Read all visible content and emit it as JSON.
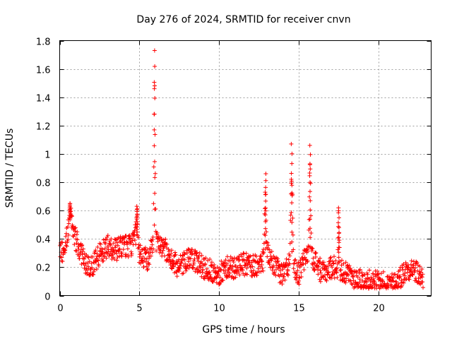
{
  "chart_data": {
    "type": "scatter",
    "title": "Day 276 of 2024, SRMTID for receiver cnvn",
    "xlabel": "GPS time / hours",
    "ylabel": "SRMTID / TECUs",
    "xlim": [
      0,
      23.3
    ],
    "ylim": [
      0,
      1.8
    ],
    "x_ticks": [
      0,
      5,
      10,
      15,
      20
    ],
    "y_ticks": [
      0,
      0.2,
      0.4,
      0.6,
      0.8,
      1.0,
      1.2,
      1.4,
      1.6,
      1.8
    ],
    "x_tick_labels": [
      "0",
      "5",
      "10",
      "15",
      "20"
    ],
    "y_tick_labels": [
      "0",
      "0.2",
      "0.4",
      "0.6",
      "0.8",
      "1",
      "1.2",
      "1.4",
      "1.6",
      "1.8"
    ],
    "grid": true,
    "marker": "plus",
    "color": "#ff0000",
    "series": [
      {
        "name": "SRMTID",
        "baseline": [
          [
            0.0,
            0.3
          ],
          [
            0.3,
            0.3
          ],
          [
            0.5,
            0.45
          ],
          [
            0.7,
            0.55
          ],
          [
            1.0,
            0.4
          ],
          [
            1.5,
            0.25
          ],
          [
            2.0,
            0.2
          ],
          [
            2.5,
            0.3
          ],
          [
            3.0,
            0.35
          ],
          [
            3.5,
            0.32
          ],
          [
            4.0,
            0.35
          ],
          [
            4.5,
            0.35
          ],
          [
            4.8,
            0.45
          ],
          [
            5.0,
            0.3
          ],
          [
            5.5,
            0.25
          ],
          [
            6.0,
            0.4
          ],
          [
            6.5,
            0.35
          ],
          [
            7.0,
            0.25
          ],
          [
            7.5,
            0.2
          ],
          [
            8.0,
            0.25
          ],
          [
            8.5,
            0.25
          ],
          [
            9.0,
            0.2
          ],
          [
            9.5,
            0.18
          ],
          [
            10.0,
            0.15
          ],
          [
            10.5,
            0.2
          ],
          [
            11.0,
            0.2
          ],
          [
            11.5,
            0.22
          ],
          [
            12.0,
            0.22
          ],
          [
            12.5,
            0.2
          ],
          [
            13.0,
            0.3
          ],
          [
            13.5,
            0.2
          ],
          [
            14.0,
            0.15
          ],
          [
            14.5,
            0.25
          ],
          [
            15.0,
            0.15
          ],
          [
            15.5,
            0.3
          ],
          [
            16.0,
            0.25
          ],
          [
            16.5,
            0.15
          ],
          [
            17.0,
            0.2
          ],
          [
            17.5,
            0.2
          ],
          [
            18.0,
            0.15
          ],
          [
            18.5,
            0.12
          ],
          [
            19.0,
            0.1
          ],
          [
            19.5,
            0.1
          ],
          [
            20.0,
            0.1
          ],
          [
            20.5,
            0.08
          ],
          [
            21.0,
            0.08
          ],
          [
            21.5,
            0.15
          ],
          [
            22.0,
            0.2
          ],
          [
            22.5,
            0.15
          ],
          [
            22.8,
            0.12
          ]
        ],
        "peaks": [
          {
            "center": 5.95,
            "peak": 1.73,
            "width": 0.08
          },
          {
            "center": 4.85,
            "peak": 0.63,
            "width": 0.06
          },
          {
            "center": 0.65,
            "peak": 0.65,
            "width": 0.08
          },
          {
            "center": 12.9,
            "peak": 0.86,
            "width": 0.1
          },
          {
            "center": 14.55,
            "peak": 1.07,
            "width": 0.12
          },
          {
            "center": 15.7,
            "peak": 1.06,
            "width": 0.1
          },
          {
            "center": 17.5,
            "peak": 0.62,
            "width": 0.08
          }
        ]
      }
    ]
  }
}
